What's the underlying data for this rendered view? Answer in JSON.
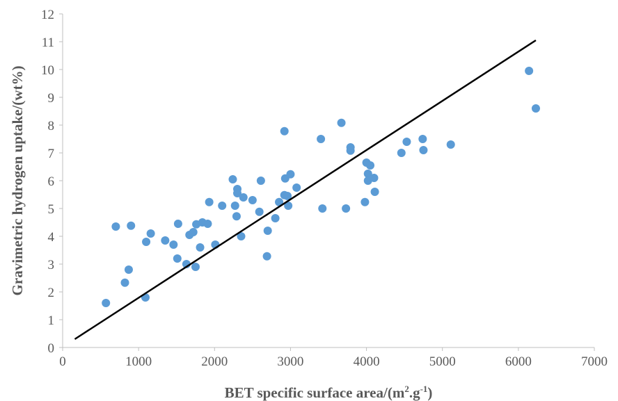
{
  "chart_data": {
    "type": "scatter",
    "title": "",
    "xlabel": "BET specific surface area/(m",
    "xlabel_sup1": "2",
    "xlabel_mid": ".g",
    "xlabel_sup2": "-1",
    "xlabel_end": ")",
    "ylabel": "Gravimetric hydrogen uptake/(wt%)",
    "xlim": [
      0,
      7000
    ],
    "ylim": [
      0,
      12
    ],
    "xticks": [
      "0",
      "1000",
      "2000",
      "3000",
      "4000",
      "5000",
      "6000",
      "7000"
    ],
    "yticks": [
      "0",
      "1",
      "2",
      "3",
      "4",
      "5",
      "6",
      "7",
      "8",
      "9",
      "10",
      "11",
      "12"
    ],
    "grid": false,
    "point_color": "#5b9bd5",
    "line_color": "#000000",
    "points": [
      {
        "x": 570,
        "y": 1.6
      },
      {
        "x": 700,
        "y": 4.35
      },
      {
        "x": 820,
        "y": 2.33
      },
      {
        "x": 870,
        "y": 2.8
      },
      {
        "x": 900,
        "y": 4.38
      },
      {
        "x": 1090,
        "y": 1.8
      },
      {
        "x": 1100,
        "y": 3.8
      },
      {
        "x": 1160,
        "y": 4.1
      },
      {
        "x": 1350,
        "y": 3.85
      },
      {
        "x": 1460,
        "y": 3.7
      },
      {
        "x": 1510,
        "y": 3.2
      },
      {
        "x": 1520,
        "y": 4.45
      },
      {
        "x": 1630,
        "y": 3.0
      },
      {
        "x": 1670,
        "y": 4.05
      },
      {
        "x": 1720,
        "y": 4.15
      },
      {
        "x": 1750,
        "y": 2.9
      },
      {
        "x": 1760,
        "y": 4.43
      },
      {
        "x": 1810,
        "y": 3.6
      },
      {
        "x": 1840,
        "y": 4.5
      },
      {
        "x": 1910,
        "y": 4.45
      },
      {
        "x": 1930,
        "y": 5.23
      },
      {
        "x": 2010,
        "y": 3.7
      },
      {
        "x": 2100,
        "y": 5.1
      },
      {
        "x": 2240,
        "y": 6.05
      },
      {
        "x": 2270,
        "y": 5.1
      },
      {
        "x": 2290,
        "y": 4.72
      },
      {
        "x": 2300,
        "y": 5.7
      },
      {
        "x": 2300,
        "y": 5.55
      },
      {
        "x": 2350,
        "y": 4.0
      },
      {
        "x": 2380,
        "y": 5.4
      },
      {
        "x": 2500,
        "y": 5.3
      },
      {
        "x": 2590,
        "y": 4.88
      },
      {
        "x": 2610,
        "y": 6.0
      },
      {
        "x": 2690,
        "y": 3.28
      },
      {
        "x": 2700,
        "y": 4.2
      },
      {
        "x": 2800,
        "y": 4.65
      },
      {
        "x": 2850,
        "y": 5.23
      },
      {
        "x": 2920,
        "y": 7.78
      },
      {
        "x": 2920,
        "y": 5.48
      },
      {
        "x": 2930,
        "y": 6.08
      },
      {
        "x": 2960,
        "y": 5.45
      },
      {
        "x": 2970,
        "y": 5.1
      },
      {
        "x": 3000,
        "y": 6.23
      },
      {
        "x": 3080,
        "y": 5.75
      },
      {
        "x": 3400,
        "y": 7.5
      },
      {
        "x": 3420,
        "y": 5.0
      },
      {
        "x": 3670,
        "y": 8.08
      },
      {
        "x": 3730,
        "y": 5.0
      },
      {
        "x": 3790,
        "y": 7.2
      },
      {
        "x": 3790,
        "y": 7.08
      },
      {
        "x": 3980,
        "y": 5.23
      },
      {
        "x": 4000,
        "y": 6.65
      },
      {
        "x": 4020,
        "y": 6.25
      },
      {
        "x": 4020,
        "y": 6.0
      },
      {
        "x": 4050,
        "y": 6.55
      },
      {
        "x": 4100,
        "y": 6.1
      },
      {
        "x": 4110,
        "y": 5.6
      },
      {
        "x": 4460,
        "y": 7.0
      },
      {
        "x": 4530,
        "y": 7.4
      },
      {
        "x": 4740,
        "y": 7.5
      },
      {
        "x": 4750,
        "y": 7.1
      },
      {
        "x": 5110,
        "y": 7.3
      },
      {
        "x": 6140,
        "y": 9.95
      },
      {
        "x": 6230,
        "y": 8.6
      }
    ],
    "trendline": [
      {
        "x": 160,
        "y": 0.3
      },
      {
        "x": 6230,
        "y": 11.05
      }
    ]
  }
}
